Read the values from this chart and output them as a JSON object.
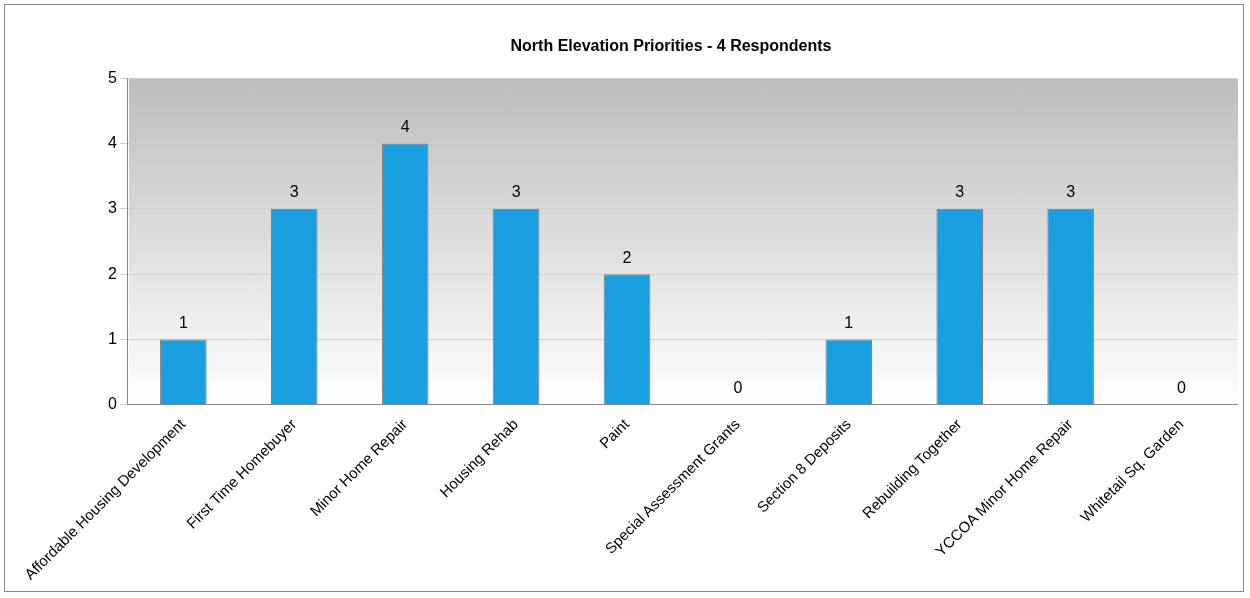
{
  "chart_data": {
    "type": "bar",
    "title": "North Elevation Priorities - 4 Respondents",
    "categories": [
      "Affordable Housing Development",
      "First Time Homebuyer",
      "Minor Home Repair",
      "Housing Rehab",
      "Paint",
      "Special Assessment Grants",
      "Section 8 Deposits",
      "Rebuilding Together",
      "YCCOA Minor Home Repair",
      "Whitetail Sq. Garden"
    ],
    "values": [
      1,
      3,
      4,
      3,
      2,
      0,
      1,
      3,
      3,
      0
    ],
    "color": "#1a9fe0",
    "ylim": [
      0,
      5
    ],
    "yticks": [
      0,
      1,
      2,
      3,
      4,
      5
    ],
    "grid": "y",
    "legend": false,
    "data_labels": true
  }
}
